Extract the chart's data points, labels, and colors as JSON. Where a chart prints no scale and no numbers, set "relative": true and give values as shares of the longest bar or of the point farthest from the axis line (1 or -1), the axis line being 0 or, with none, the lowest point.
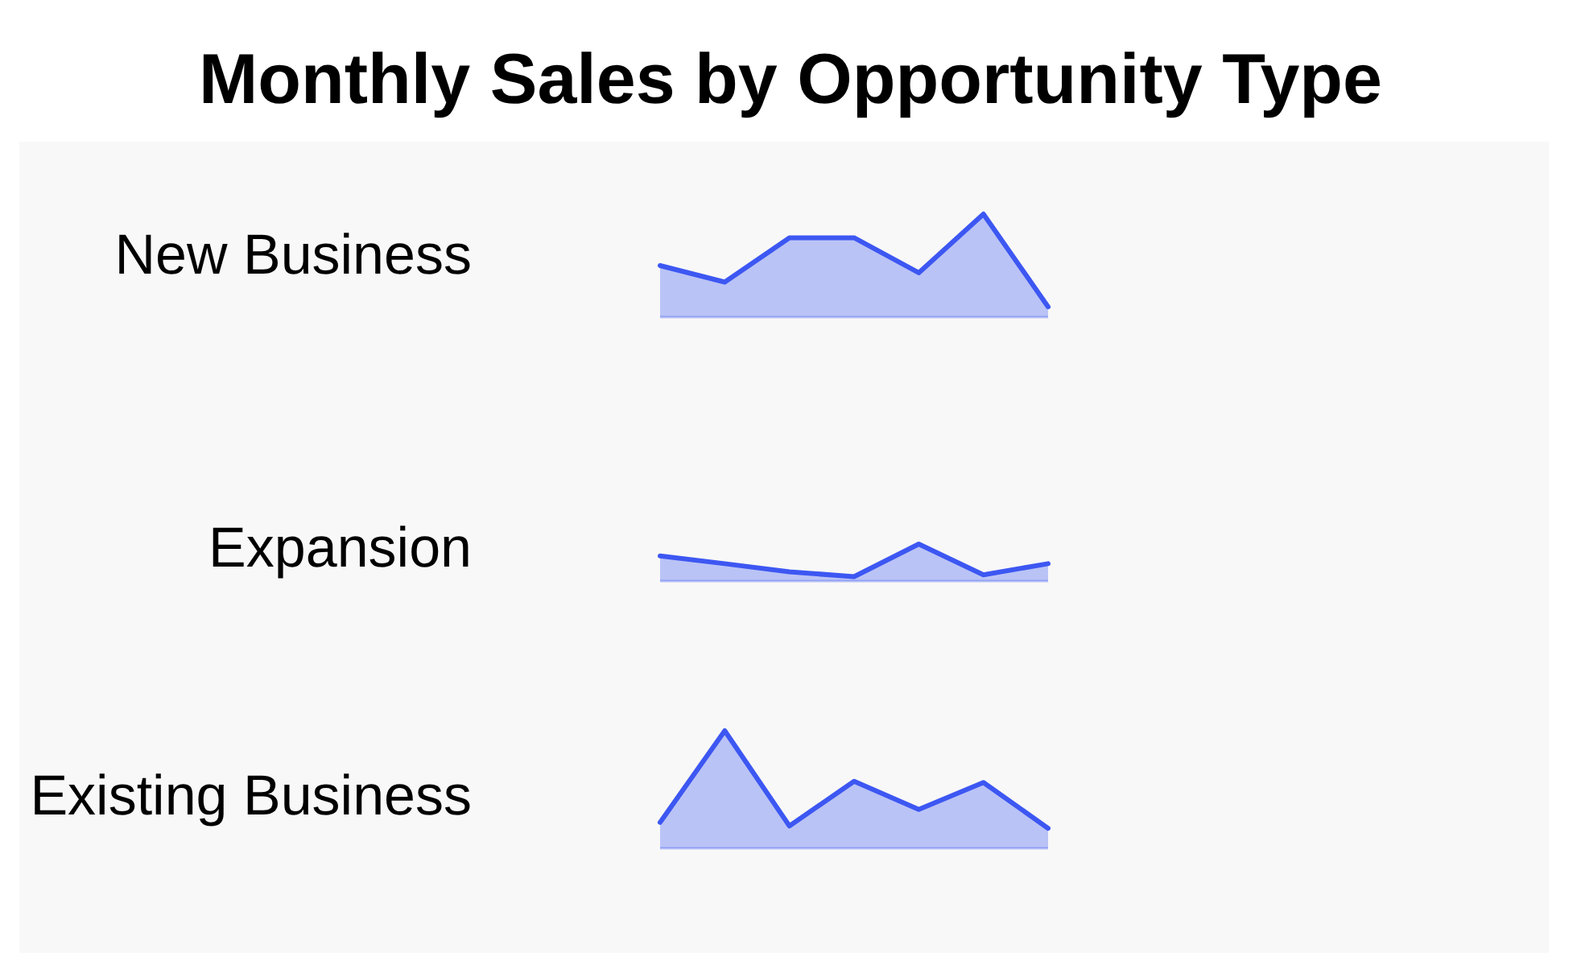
{
  "chart_data": [
    {
      "type": "area",
      "title": "Monthly Sales by Opportunity Type",
      "categories": [
        null,
        null,
        null,
        null,
        null,
        null,
        null
      ],
      "relative": true,
      "series": [
        {
          "name": "New Business",
          "color": "#3d57f2",
          "values": [
            0.5,
            0.34,
            0.77,
            0.77,
            0.43,
            1,
            0.1
          ]
        }
      ]
    },
    {
      "type": "area",
      "categories": [
        null,
        null,
        null,
        null,
        null,
        null,
        null
      ],
      "relative": true,
      "series": [
        {
          "name": "Expansion",
          "color": "#3d57f2",
          "values": [
            0.68,
            0.47,
            0.25,
            0.12,
            1,
            0.17,
            0.47
          ]
        }
      ]
    },
    {
      "type": "area",
      "categories": [
        null,
        null,
        null,
        null,
        null,
        null,
        null
      ],
      "relative": true,
      "series": [
        {
          "name": "Existing Business",
          "color": "#3d57f2",
          "values": [
            0.22,
            1,
            0.19,
            0.57,
            0.33,
            0.56,
            0.17
          ]
        }
      ]
    }
  ]
}
